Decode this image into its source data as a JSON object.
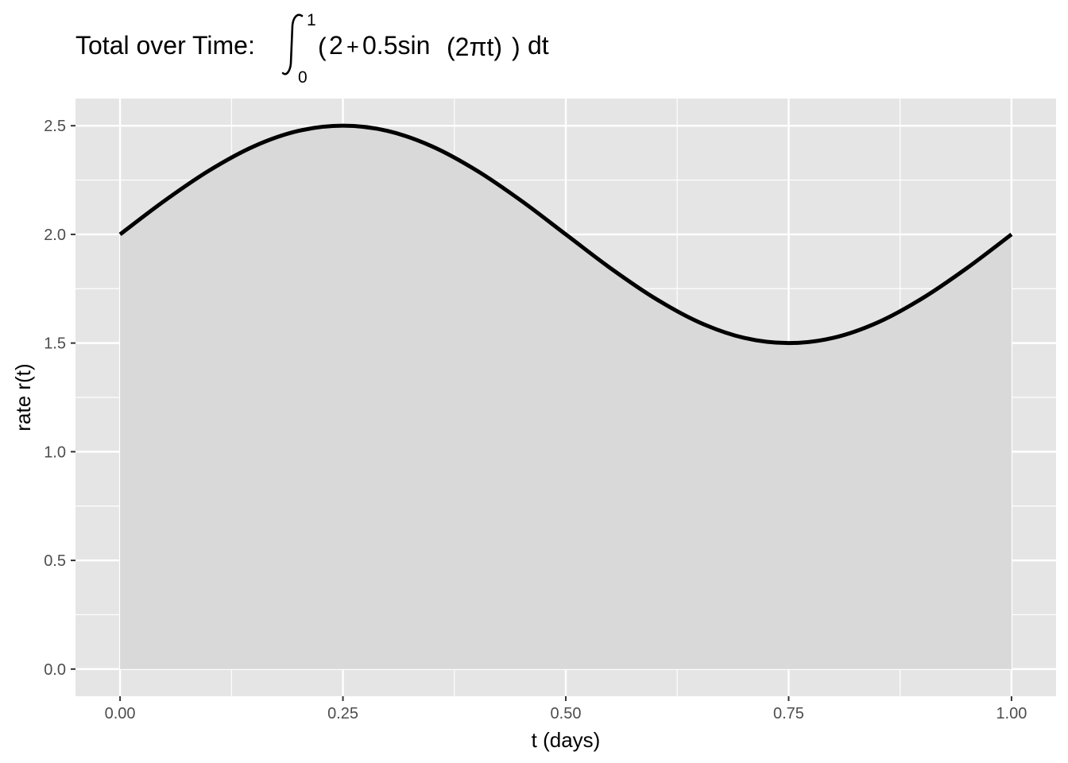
{
  "chart_data": {
    "type": "area",
    "title": {
      "prefix": "Total over Time:",
      "integral_upper": "1",
      "integral_lower": "0",
      "integrand_open": "(",
      "integrand_2": "2",
      "integrand_plus": "+",
      "integrand_coef": "0.5sin",
      "integrand_arg": "(2πt)",
      "integrand_close": ")",
      "integrand_dt": "dt"
    },
    "xlabel": "t (days)",
    "ylabel": "rate r(t)",
    "xlim": [
      -0.05,
      1.05
    ],
    "ylim": [
      -0.125,
      2.625
    ],
    "x_ticks": [
      0,
      0.25,
      0.5,
      0.75,
      1
    ],
    "x_tick_labels": [
      "0.00",
      "0.25",
      "0.50",
      "0.75",
      "1.00"
    ],
    "y_ticks": [
      0,
      0.5,
      1,
      1.5,
      2,
      2.5
    ],
    "y_tick_labels": [
      "0.0",
      "0.5",
      "1.0",
      "1.5",
      "2.0",
      "2.5"
    ],
    "grid": true,
    "series": [
      {
        "x": [
          0,
          0.05,
          0.1,
          0.15,
          0.2,
          0.25,
          0.3,
          0.35,
          0.4,
          0.45,
          0.5,
          0.55,
          0.6,
          0.65,
          0.7,
          0.75,
          0.8,
          0.85,
          0.9,
          0.95,
          1
        ],
        "values": [
          2.0,
          2.155,
          2.294,
          2.405,
          2.476,
          2.5,
          2.476,
          2.405,
          2.294,
          2.155,
          2.0,
          1.845,
          1.706,
          1.595,
          1.524,
          1.5,
          1.524,
          1.595,
          1.706,
          1.845,
          2.0
        ]
      }
    ],
    "colors": {
      "panel_background": "#e5e5e5",
      "grid_major": "#ffffff",
      "area_fill": "#d9d9d9",
      "line": "#000000",
      "tick_label": "#4d4d4d"
    }
  }
}
